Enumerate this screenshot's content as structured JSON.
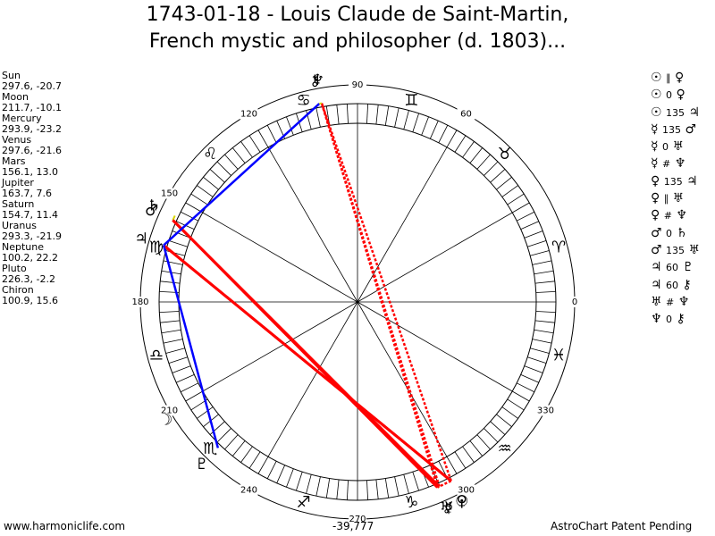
{
  "header": {
    "title_line1": "1743-01-18 - Louis Claude de Saint-Martin,",
    "title_line2": "French mystic and philosopher (d. 1803)..."
  },
  "planets": [
    {
      "name": "Sun",
      "coords": "297.6, -20.7",
      "glyph": "☉"
    },
    {
      "name": "Moon",
      "coords": "211.7, -10.1",
      "glyph": "☽"
    },
    {
      "name": "Mercury",
      "coords": "293.9, -23.2",
      "glyph": "☿"
    },
    {
      "name": "Venus",
      "coords": "297.6, -21.6",
      "glyph": "♀"
    },
    {
      "name": "Mars",
      "coords": "156.1, 13.0",
      "glyph": "♂"
    },
    {
      "name": "Jupiter",
      "coords": "163.7, 7.6",
      "glyph": "♃"
    },
    {
      "name": "Saturn",
      "coords": "154.7, 11.4",
      "glyph": "♄"
    },
    {
      "name": "Uranus",
      "coords": "293.3, -21.9",
      "glyph": "♅"
    },
    {
      "name": "Neptune",
      "coords": "100.2, 22.2",
      "glyph": "♆"
    },
    {
      "name": "Pluto",
      "coords": "226.3, -2.2",
      "glyph": "♇"
    },
    {
      "name": "Chiron",
      "coords": "100.9, 15.6",
      "glyph": "⚷"
    }
  ],
  "aspects": [
    {
      "p1": "☉",
      "symbol": "∥",
      "p2": "♀"
    },
    {
      "p1": "☉",
      "symbol": "0",
      "p2": "♀"
    },
    {
      "p1": "☉",
      "symbol": "135",
      "p2": "♃"
    },
    {
      "p1": "☿",
      "symbol": "135",
      "p2": "♂"
    },
    {
      "p1": "☿",
      "symbol": "0",
      "p2": "♅"
    },
    {
      "p1": "☿",
      "symbol": "#",
      "p2": "♆"
    },
    {
      "p1": "♀",
      "symbol": "135",
      "p2": "♃"
    },
    {
      "p1": "♀",
      "symbol": "∥",
      "p2": "♅"
    },
    {
      "p1": "♀",
      "symbol": "#",
      "p2": "♆"
    },
    {
      "p1": "♂",
      "symbol": "0",
      "p2": "♄"
    },
    {
      "p1": "♂",
      "symbol": "135",
      "p2": "♅"
    },
    {
      "p1": "♃",
      "symbol": "60",
      "p2": "♇"
    },
    {
      "p1": "♃",
      "symbol": "60",
      "p2": "⚷"
    },
    {
      "p1": "♅",
      "symbol": "#",
      "p2": "♆"
    },
    {
      "p1": "♆",
      "symbol": "0",
      "p2": "⚷"
    }
  ],
  "wheel": {
    "degree_labels": [
      0,
      60,
      90,
      120,
      150,
      180,
      210,
      240,
      270,
      300,
      330
    ],
    "signs": [
      "♈",
      "♉",
      "♊",
      "♋",
      "♌",
      "♍",
      "♎",
      "♏",
      "♐",
      "♑",
      "♒",
      "♓"
    ]
  },
  "footer": {
    "left": "www.harmoniclife.com",
    "center": "-39,777",
    "right": "AstroChart Patent Pending"
  }
}
